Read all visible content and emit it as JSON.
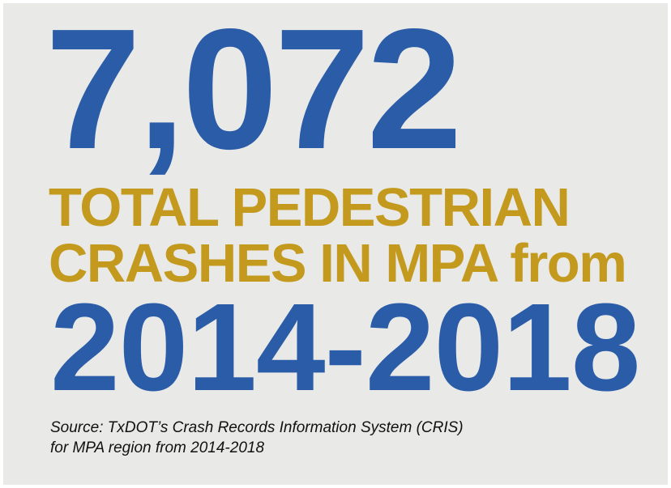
{
  "headline": {
    "number": "7,072",
    "line1": "TOTAL PEDESTRIAN",
    "line2": "CRASHES IN MPA from",
    "years": "2014-2018"
  },
  "source": {
    "line1": "Source: TxDOT’s Crash Records Information System (CRIS)",
    "line2": "for MPA region from 2014-2018"
  }
}
